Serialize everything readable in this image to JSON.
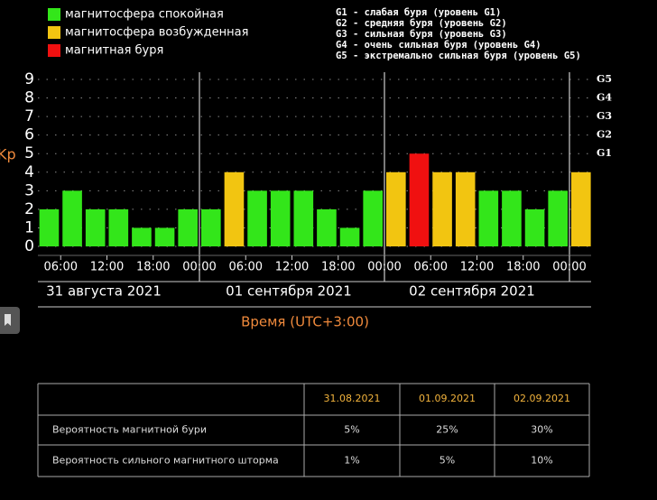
{
  "legend": [
    {
      "label": "магнитосфера спокойная",
      "color": "#33e61a"
    },
    {
      "label": "магнитосфера возбужденная",
      "color": "#f2c511"
    },
    {
      "label": "магнитная буря",
      "color": "#f01010"
    }
  ],
  "scale_notes": [
    "G1 - слабая буря (уровень G1)",
    "G2 - средняя буря (уровень G2)",
    "G3 - сильная буря (уровень G3)",
    "G4 - очень сильная буря (уровень G4)",
    "G5 - экстремально сильная буря (уровень G5)"
  ],
  "chart_data": {
    "type": "bar",
    "y_label": "Kp",
    "x_label": "Время (UTC+3:00)",
    "values": [
      2,
      3,
      2,
      2,
      1,
      1,
      2,
      2,
      4,
      3,
      3,
      3,
      2,
      1,
      3,
      4,
      5,
      4,
      4,
      3,
      3,
      2,
      3,
      4
    ],
    "colors": [
      "#33e61a",
      "#33e61a",
      "#33e61a",
      "#33e61a",
      "#33e61a",
      "#33e61a",
      "#33e61a",
      "#33e61a",
      "#f2c511",
      "#33e61a",
      "#33e61a",
      "#33e61a",
      "#33e61a",
      "#33e61a",
      "#33e61a",
      "#f2c511",
      "#f01010",
      "#f2c511",
      "#f2c511",
      "#33e61a",
      "#33e61a",
      "#33e61a",
      "#33e61a",
      "#f2c511"
    ],
    "ylim": [
      0,
      9
    ],
    "yticks": [
      0,
      1,
      2,
      3,
      4,
      5,
      6,
      7,
      8,
      9
    ],
    "y2ticks": [
      {
        "value": 5,
        "label": "G1"
      },
      {
        "value": 6,
        "label": "G2"
      },
      {
        "value": 7,
        "label": "G3"
      },
      {
        "value": 8,
        "label": "G4"
      },
      {
        "value": 9,
        "label": "G5"
      }
    ],
    "xticks": [
      "06:00",
      "12:00",
      "18:00",
      "00:00",
      "06:00",
      "12:00",
      "18:00",
      "00:00",
      "06:00",
      "12:00",
      "18:00",
      "00:00"
    ],
    "days": [
      "31 августа 2021",
      "01 сентября 2021",
      "02 сентября 2021"
    ],
    "grid": true
  },
  "table": {
    "header": [
      "31.08.2021",
      "01.09.2021",
      "02.09.2021"
    ],
    "rows": [
      [
        "Вероятность магнитной бури",
        "5%",
        "25%",
        "30%"
      ],
      [
        "Вероятность сильного магнитного шторма",
        "1%",
        "5%",
        "10%"
      ]
    ]
  }
}
